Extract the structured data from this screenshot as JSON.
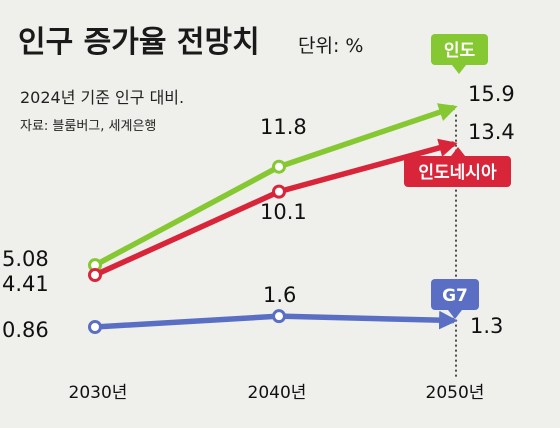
{
  "header": {
    "title": "인구 증가율 전망치",
    "unit": "단위: %",
    "subtitle": "2024년 기준 인구 대비.",
    "source": "자료: 블룸버그, 세계은행"
  },
  "colors": {
    "background": "#efefec",
    "india": "#86c832",
    "indonesia": "#d8253a",
    "g7": "#5a6fc3"
  },
  "chart_data": {
    "type": "line",
    "x": [
      "2030년",
      "2040년",
      "2050년"
    ],
    "series": [
      {
        "name": "인도",
        "values": [
          5.08,
          11.8,
          15.9
        ],
        "labels": [
          "5.08",
          "11.8",
          "15.9"
        ],
        "color": "#86c832"
      },
      {
        "name": "인도네시아",
        "values": [
          4.41,
          10.1,
          13.4
        ],
        "labels": [
          "4.41",
          "10.1",
          "13.4"
        ],
        "color": "#d8253a"
      },
      {
        "name": "G7",
        "values": [
          0.86,
          1.6,
          1.3
        ],
        "labels": [
          "0.86",
          "1.6",
          "1.3"
        ],
        "color": "#5a6fc3"
      }
    ],
    "grid": false
  }
}
